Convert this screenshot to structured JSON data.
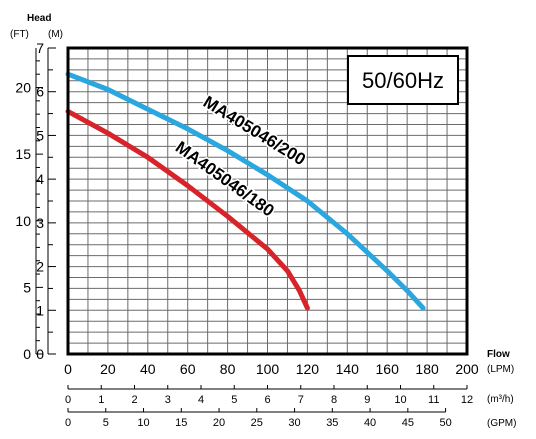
{
  "chart_data": {
    "type": "line",
    "title": "50/60Hz",
    "y_axis": {
      "header": "Head",
      "unit_ft": "(FT)",
      "unit_m": "(M)",
      "m_range": [
        0,
        7
      ],
      "m_ticks": [
        "0",
        "1",
        "2",
        "3",
        "4",
        "5",
        "6",
        "7"
      ],
      "ft_ticks": [
        "0",
        "5",
        "10",
        "15",
        "20"
      ]
    },
    "x_axis": {
      "label": "Flow",
      "unit_lpm": "(LPM)",
      "unit_m3h": "(m³/h)",
      "unit_gpm": "(GPM)",
      "lpm_range": [
        0,
        200
      ],
      "lpm_ticks": [
        "0",
        "20",
        "40",
        "60",
        "80",
        "100",
        "120",
        "140",
        "160",
        "180",
        "200"
      ],
      "m3h_ticks": [
        "0",
        "1",
        "2",
        "3",
        "4",
        "5",
        "6",
        "7",
        "8",
        "9",
        "10",
        "11",
        "12"
      ],
      "gpm_ticks": [
        "0",
        "5",
        "10",
        "15",
        "20",
        "25",
        "30",
        "35",
        "40",
        "45",
        "50"
      ]
    },
    "grid": true,
    "series": [
      {
        "name": "MA405046/180",
        "color": "#d8232a",
        "x": [
          0,
          20,
          40,
          60,
          80,
          100,
          110,
          116,
          120
        ],
        "y": [
          5.55,
          5.05,
          4.5,
          3.85,
          3.15,
          2.4,
          1.9,
          1.45,
          1.05
        ]
      },
      {
        "name": "MA405046/200",
        "color": "#2aa7df",
        "x": [
          0,
          20,
          40,
          60,
          80,
          100,
          120,
          140,
          160,
          170,
          178
        ],
        "y": [
          6.4,
          6.05,
          5.6,
          5.15,
          4.65,
          4.1,
          3.5,
          2.75,
          1.9,
          1.45,
          1.05
        ]
      }
    ]
  }
}
